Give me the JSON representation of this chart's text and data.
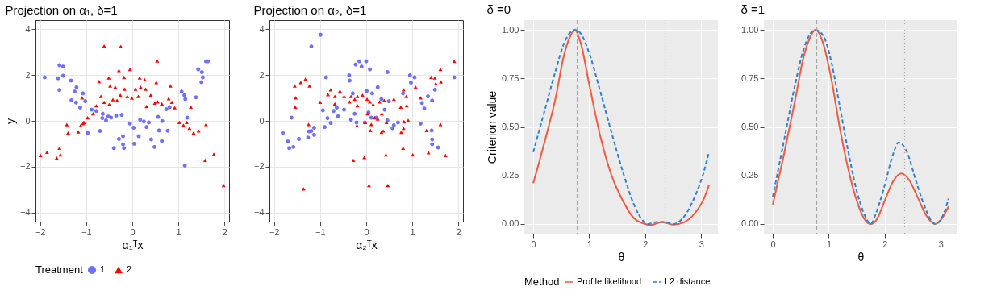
{
  "chart_data": [
    {
      "type": "scatter",
      "title": "Projection on α₁, δ=1",
      "xlabel": "α₁ᵀx",
      "ylabel": "y",
      "xlim": [
        -2.1,
        2.1
      ],
      "ylim": [
        -4.4,
        4.4
      ],
      "xticks": [
        -2,
        -1,
        0,
        1,
        2
      ],
      "yticks": [
        -4,
        -2,
        0,
        2,
        4
      ],
      "grid": true,
      "legend": "bottom",
      "legend_title": "Treatment",
      "series": [
        {
          "name": "1",
          "color": "#7070ff",
          "marker": "circle",
          "x": [
            -1.9,
            -1.58,
            -1.5,
            -1.61,
            -1.5,
            -1.58,
            -1.33,
            -1.21,
            -1.25,
            -1.32,
            -1.22,
            -1.13,
            -1.07,
            -1.02,
            -0.97,
            -0.88,
            -0.78,
            -0.7,
            -0.64,
            -0.65,
            -0.57,
            -0.52,
            -0.46,
            -0.4,
            -0.35,
            -0.29,
            -0.23,
            -0.2,
            -0.2,
            -0.18,
            -0.05,
            0.03,
            0.04,
            0.14,
            0.17,
            0.25,
            0.31,
            0.36,
            0.41,
            0.48,
            0.56,
            0.58,
            0.65,
            0.64,
            0.77,
            0.74,
            0.81,
            1.07,
            1.13,
            1.15,
            1.14,
            1.19,
            1.38,
            1.43,
            1.51,
            1.5,
            1.53,
            1.6,
            1.64
          ],
          "values": [
            1.9,
            2.43,
            2.37,
            1.86,
            1.97,
            1.35,
            1.76,
            1.47,
            1.28,
            0.9,
            0.8,
            0.58,
            1.2,
            0.86,
            -0.53,
            0.49,
            0.43,
            -0.44,
            0.31,
            0.12,
            0.02,
            0.19,
            0.14,
            -1.19,
            0.23,
            -0.79,
            0.26,
            -0.67,
            -1.02,
            -1.19,
            -0.12,
            -0.3,
            -1.0,
            -0.67,
            0.05,
            -0.03,
            -0.27,
            -0.07,
            -0.81,
            -1.14,
            0.17,
            -0.42,
            -0.01,
            -0.88,
            -0.43,
            0.51,
            0.6,
            1.28,
            1.12,
            0.95,
            -1.95,
            0.14,
            1.03,
            2.25,
            2.13,
            1.69,
            1.9,
            2.6,
            2.6
          ]
        },
        {
          "name": "2",
          "color": "#ff0000",
          "marker": "triangle",
          "x": [
            -1.99,
            -1.85,
            -1.64,
            -1.58,
            -1.56,
            -1.42,
            -1.39,
            -1.17,
            -1.12,
            -1.07,
            -1.05,
            -1.09,
            -0.97,
            -0.85,
            -0.78,
            -0.61,
            -0.72,
            -0.68,
            -0.61,
            -0.51,
            -0.48,
            -0.5,
            -0.42,
            -0.37,
            -0.33,
            -0.29,
            -0.25,
            -0.26,
            -0.18,
            -0.17,
            -0.11,
            -0.05,
            -0.01,
            0.07,
            0.13,
            0.16,
            0.18,
            0.27,
            0.29,
            0.31,
            0.4,
            0.49,
            0.52,
            0.54,
            0.55,
            0.64,
            0.79,
            0.83,
            0.86,
            0.92,
            1.02,
            1.11,
            1.18,
            1.24,
            1.27,
            1.33,
            1.44,
            1.58,
            1.6,
            1.77,
            1.98
          ],
          "values": [
            -1.51,
            -1.37,
            -1.62,
            -1.19,
            -1.48,
            -0.16,
            -0.52,
            -0.48,
            -0.21,
            -0.12,
            -0.07,
            1.01,
            0.14,
            0.31,
            0.66,
            3.27,
            1.72,
            1.07,
            0.81,
            1.88,
            1.53,
            0.72,
            0.93,
            1.47,
            0.89,
            2.2,
            3.25,
            1.12,
            1.9,
            1.39,
            1.07,
            2.25,
            1.0,
            1.39,
            1.07,
            1.88,
            1.47,
            1.8,
            1.39,
            0.63,
            1.12,
            0.78,
            1.68,
            2.62,
            0.83,
            0.74,
            0.97,
            1.53,
            0.81,
            0.58,
            -0.07,
            -0.19,
            -0.07,
            -0.32,
            0.6,
            -0.52,
            -0.44,
            -1.72,
            -0.15,
            -1.46,
            -2.82
          ]
        }
      ]
    },
    {
      "type": "scatter",
      "title": "Projection on α₂, δ=1",
      "xlabel": "α₂ᵀx",
      "xlim": [
        -2.1,
        2.1
      ],
      "ylim": [
        -4.4,
        4.4
      ],
      "xticks": [
        -2,
        -1,
        0,
        1,
        2
      ],
      "yticks": [
        -4,
        -2,
        0,
        2,
        4
      ],
      "grid": true,
      "series": [
        {
          "color": "#7070ff",
          "marker": "circle",
          "x": [
            -1.81,
            -1.7,
            -1.67,
            -1.58,
            -1.62,
            -1.46,
            -1.26,
            -1.24,
            -1.19,
            -1.19,
            -1.13,
            -1.13,
            -0.99,
            -0.94,
            -0.9,
            -0.87,
            -0.84,
            -0.77,
            -0.71,
            -0.64,
            -0.61,
            -0.48,
            -0.37,
            -0.36,
            -0.33,
            -0.29,
            -0.25,
            -0.23,
            -0.21,
            -0.15,
            -0.1,
            -0.03,
            0.0,
            0.01,
            0.05,
            0.08,
            0.11,
            0.13,
            0.22,
            0.25,
            0.33,
            0.4,
            0.46,
            0.49,
            0.46,
            0.57,
            0.6,
            0.69,
            0.8,
            0.95,
            0.97,
            1.05,
            1.18,
            1.21,
            1.26,
            1.34,
            1.42,
            1.43,
            1.43,
            1.49,
            1.56,
            1.91,
            1.43
          ],
          "values": [
            -0.53,
            -0.9,
            -1.19,
            -1.14,
            0.14,
            -0.79,
            -0.73,
            -0.46,
            3.25,
            -0.44,
            -0.61,
            -0.3,
            3.76,
            0.46,
            -0.27,
            1.9,
            0.12,
            -0.09,
            0.43,
            0.58,
            0.2,
            0.49,
            1.99,
            1.76,
            0.05,
            1.2,
            0.31,
            2.46,
            -0.07,
            2.6,
            2.37,
            -0.07,
            2.6,
            1.3,
            0.37,
            2.25,
            0.14,
            1.2,
            0.14,
            1.47,
            0.95,
            0.49,
            0.02,
            0.86,
            2.13,
            -0.32,
            -0.19,
            -0.07,
            1.2,
            1.99,
            1.67,
            1.9,
            -0.12,
            0.78,
            0.54,
            1.07,
            -0.42,
            -0.81,
            -1.02,
            1.36,
            -1.16,
            1.9,
            0.89
          ]
        },
        {
          "color": "#ff0000",
          "marker": "triangle",
          "x": [
            -1.55,
            -1.53,
            -1.54,
            -1.42,
            -1.32,
            -1.36,
            -1.25,
            -1.23,
            -1.0,
            -0.83,
            -0.77,
            -0.68,
            -0.68,
            -0.57,
            -0.48,
            -0.36,
            -0.33,
            -0.28,
            -0.25,
            -0.2,
            -0.19,
            -0.19,
            -0.08,
            -0.04,
            -0.02,
            0.02,
            0.03,
            0.06,
            0.08,
            0.09,
            0.11,
            0.15,
            0.18,
            0.25,
            0.29,
            0.33,
            0.34,
            0.37,
            0.39,
            0.43,
            0.44,
            0.47,
            0.6,
            0.75,
            0.76,
            0.8,
            0.81,
            0.82,
            0.81,
            0.87,
            0.88,
            0.91,
            1.01,
            1.07,
            1.18,
            1.31,
            1.35,
            1.41,
            1.49,
            1.51,
            1.61,
            1.61,
            1.62,
            1.72,
            1.91
          ],
          "values": [
            1.53,
            1.01,
            0.6,
            1.68,
            1.82,
            -2.97,
            -0.15,
            1.53,
            0.81,
            1.15,
            1.36,
            1.07,
            0.74,
            1.3,
            1.07,
            0.83,
            1.07,
            -1.72,
            0.95,
            -0.21,
            1.07,
            0.66,
            1.12,
            -1.6,
            -0.07,
            0.95,
            0.31,
            -2.82,
            0.83,
            -0.42,
            -0.15,
            0.72,
            0.14,
            0.08,
            0.83,
            -0.5,
            0.31,
            -0.44,
            0.89,
            -1.48,
            -0.07,
            -2.82,
            0.95,
            0.6,
            -0.5,
            -1.19,
            -0.32,
            -0.03,
            1.36,
            1.07,
            0.66,
            0.02,
            -1.48,
            1.47,
            1.01,
            -0.42,
            -1.39,
            1.9,
            1.88,
            1.62,
            2.25,
            -0.15,
            1.7,
            -1.51,
            2.6
          ]
        }
      ]
    },
    {
      "type": "line",
      "title": "δ =0",
      "xlabel": "θ",
      "ylabel": "Criterion value",
      "xlim": [
        -0.16,
        3.3
      ],
      "ylim": [
        -0.05,
        1.05
      ],
      "xticks": [
        0,
        1,
        2,
        3
      ],
      "yticks": [
        {
          "value": 0,
          "label": "0.00"
        },
        0.25,
        {
          "value": 0.5,
          "label": "0.50"
        },
        0.75,
        {
          "value": 1,
          "label": "1.00"
        }
      ],
      "grid": true,
      "legend": "bottom",
      "legend_title": "Method",
      "ref_lines": [
        {
          "axis": "x",
          "value": 0.785,
          "color": "#a6a6a6",
          "line_style": "dashed"
        },
        {
          "axis": "x",
          "value": 2.356,
          "color": "#a6a6a6",
          "line_style": "dotted"
        }
      ],
      "series": [
        {
          "name": "Profile likelihood",
          "color": "#f05a3f",
          "line_style": "solid",
          "x": [
            0,
            0.2,
            0.4,
            0.55,
            0.65,
            0.74,
            0.85,
            1.0,
            1.2,
            1.4,
            1.6,
            1.8,
            2.0,
            2.1,
            2.3,
            2.5,
            2.7,
            2.9,
            3.05,
            3.14
          ],
          "values": [
            0.21,
            0.42,
            0.65,
            0.87,
            0.96,
            1.0,
            0.93,
            0.72,
            0.45,
            0.25,
            0.12,
            0.03,
            0.0,
            -0.005,
            0.01,
            -0.003,
            0.01,
            0.06,
            0.13,
            0.2
          ]
        },
        {
          "name": "L2 distance",
          "color": "#2f80d0",
          "line_style": "dashed",
          "x": [
            0,
            0.2,
            0.4,
            0.55,
            0.74,
            0.85,
            1.0,
            1.2,
            1.4,
            1.6,
            1.8,
            1.95,
            2.05,
            2.2,
            2.35,
            2.5,
            2.7,
            2.9,
            3.05,
            3.14
          ],
          "values": [
            0.37,
            0.58,
            0.79,
            0.93,
            1.0,
            0.98,
            0.88,
            0.68,
            0.47,
            0.27,
            0.1,
            0.02,
            0.0,
            0.01,
            0.01,
            0.0,
            0.04,
            0.15,
            0.27,
            0.37
          ]
        }
      ]
    },
    {
      "type": "line",
      "title": "δ =1",
      "xlabel": "θ",
      "xlim": [
        -0.16,
        3.3
      ],
      "ylim": [
        -0.05,
        1.05
      ],
      "xticks": [
        0,
        1,
        2,
        3
      ],
      "yticks": [
        {
          "value": 0,
          "label": "0.00"
        },
        0.25,
        {
          "value": 0.5,
          "label": "0.50"
        },
        0.75,
        {
          "value": 1,
          "label": "1.00"
        }
      ],
      "grid": true,
      "ref_lines": [
        {
          "axis": "x",
          "value": 0.785,
          "color": "#a6a6a6",
          "line_style": "dashed"
        },
        {
          "axis": "x",
          "value": 2.356,
          "color": "#a6a6a6",
          "line_style": "dotted"
        }
      ],
      "series": [
        {
          "color": "#f05a3f",
          "line_style": "solid",
          "x": [
            0,
            0.2,
            0.4,
            0.55,
            0.65,
            0.76,
            0.9,
            1.05,
            1.2,
            1.35,
            1.5,
            1.65,
            1.75,
            1.85,
            2.0,
            2.15,
            2.3,
            2.45,
            2.6,
            2.75,
            2.9,
            3.0,
            3.14
          ],
          "values": [
            0.1,
            0.36,
            0.64,
            0.86,
            0.95,
            1.0,
            0.93,
            0.74,
            0.49,
            0.28,
            0.12,
            0.02,
            0.0,
            0.02,
            0.12,
            0.22,
            0.26,
            0.22,
            0.13,
            0.04,
            0.0,
            0.02,
            0.09
          ]
        },
        {
          "color": "#2f80d0",
          "line_style": "dashed",
          "x": [
            0,
            0.2,
            0.4,
            0.55,
            0.76,
            0.9,
            1.05,
            1.2,
            1.35,
            1.5,
            1.65,
            1.75,
            1.85,
            2.0,
            2.15,
            2.25,
            2.4,
            2.55,
            2.7,
            2.85,
            2.9,
            3.05,
            3.14
          ],
          "values": [
            0.14,
            0.43,
            0.72,
            0.9,
            1.0,
            0.97,
            0.83,
            0.6,
            0.37,
            0.17,
            0.04,
            0.0,
            0.06,
            0.2,
            0.36,
            0.42,
            0.37,
            0.23,
            0.1,
            0.01,
            0.0,
            0.05,
            0.13
          ]
        }
      ]
    }
  ]
}
